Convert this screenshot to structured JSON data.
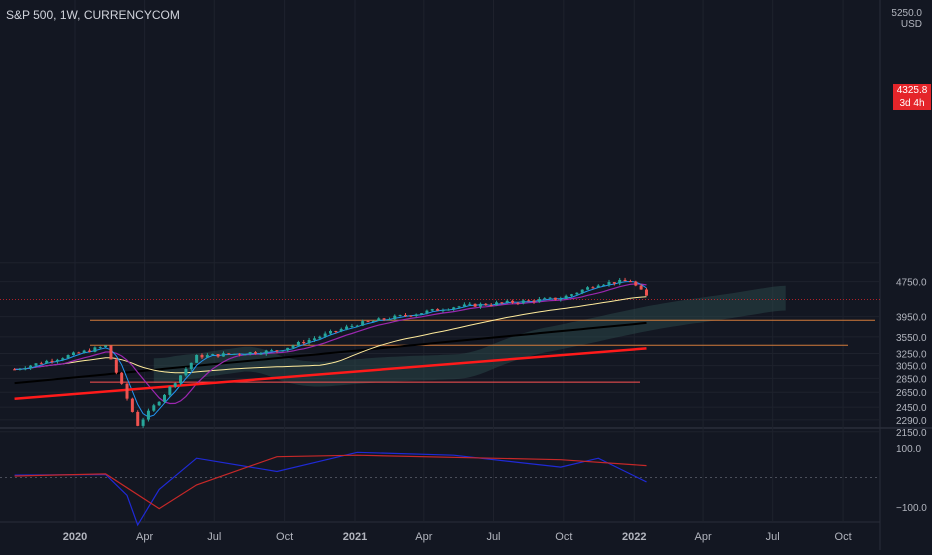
{
  "header": {
    "title": "S&P 500, 1W, CURRENCYCOM",
    "top_price": "5250.0",
    "currency": "USD"
  },
  "last_price": {
    "value": "4325.8",
    "countdown": "3d 4h"
  },
  "colors": {
    "background": "#131722",
    "up": "#26a69a",
    "down": "#ef5350",
    "ma_fast": "#2196f3",
    "ma_mid": "#9c27b0",
    "ma_200": "#ffeb9c",
    "ma_long": "#000000",
    "trend": "#ff1a1a",
    "osc": "#1f2ad6",
    "osc_signal": "#c62828"
  },
  "chart_data": [
    {
      "type": "candlestick",
      "title": "S&P 500, 1W, CURRENCYCOM",
      "x_ticks": [
        "2020",
        "Apr",
        "Jul",
        "Oct",
        "2021",
        "Apr",
        "Jul",
        "Oct",
        "2022",
        "Apr",
        "Jul",
        "Oct"
      ],
      "y_ticks": [
        5250,
        4750,
        3950,
        3550,
        3250,
        3050,
        2850,
        2650,
        2450,
        2290,
        2150
      ],
      "y_scale": "log",
      "ylim": [
        2080,
        5300
      ],
      "last_price": 4325.8,
      "horizontal_levels": [
        3875,
        3395,
        2795,
        4325.8
      ],
      "anchor_points": [
        {
          "date": "2019-10-14",
          "price": 2990
        },
        {
          "date": "2020-02-10",
          "price": 3380
        },
        {
          "date": "2020-03-23",
          "price": 2230
        },
        {
          "date": "2020-06-08",
          "price": 3200
        },
        {
          "date": "2020-09-21",
          "price": 3300
        },
        {
          "date": "2021-01-04",
          "price": 3800
        },
        {
          "date": "2021-05-10",
          "price": 4160
        },
        {
          "date": "2021-09-27",
          "price": 4350
        },
        {
          "date": "2021-11-15",
          "price": 4700
        },
        {
          "date": "2021-12-27",
          "price": 4770
        },
        {
          "date": "2022-01-17",
          "price": 4395
        }
      ],
      "trendline": [
        {
          "date": "2019-10-14",
          "price": 2560
        },
        {
          "date": "2022-01-17",
          "price": 3340
        }
      ]
    },
    {
      "type": "line",
      "title": "",
      "y_ticks": [
        100.0,
        -100.0
      ],
      "ylim": [
        -150,
        160
      ],
      "series": [
        {
          "values": [
            {
              "date": "2019-10-14",
              "value": 8
            },
            {
              "date": "2020-02-10",
              "value": 10
            },
            {
              "date": "2020-03-09",
              "value": -60
            },
            {
              "date": "2020-03-23",
              "value": -160
            },
            {
              "date": "2020-04-20",
              "value": -40
            },
            {
              "date": "2020-06-08",
              "value": 65
            },
            {
              "date": "2020-09-21",
              "value": 20
            },
            {
              "date": "2021-01-04",
              "value": 85
            },
            {
              "date": "2021-05-10",
              "value": 75
            },
            {
              "date": "2021-09-27",
              "value": 35
            },
            {
              "date": "2021-11-15",
              "value": 65
            },
            {
              "date": "2022-01-17",
              "value": -15
            }
          ]
        },
        {
          "values": [
            {
              "date": "2019-10-14",
              "value": 5
            },
            {
              "date": "2020-02-10",
              "value": 12
            },
            {
              "date": "2020-04-20",
              "value": -105
            },
            {
              "date": "2020-06-08",
              "value": -25
            },
            {
              "date": "2020-09-21",
              "value": 70
            },
            {
              "date": "2021-01-04",
              "value": 75
            },
            {
              "date": "2021-09-27",
              "value": 60
            },
            {
              "date": "2022-01-17",
              "value": 40
            }
          ]
        }
      ]
    }
  ]
}
